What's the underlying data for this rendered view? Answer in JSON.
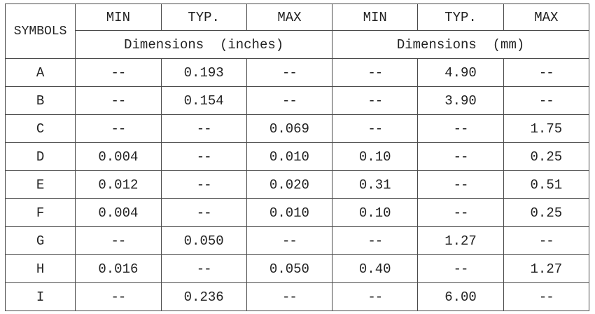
{
  "header": {
    "symbols": "SYMBOLS",
    "col_labels": [
      "MIN",
      "TYP.",
      "MAX",
      "MIN",
      "TYP.",
      "MAX"
    ],
    "group_inches": "Dimensions  (inches)",
    "group_mm": "Dimensions  (mm)"
  },
  "rows": [
    {
      "symbol": "A",
      "cells": [
        "--",
        "0.193",
        "--",
        "--",
        "4.90",
        "--"
      ]
    },
    {
      "symbol": "B",
      "cells": [
        "--",
        "0.154",
        "--",
        "--",
        "3.90",
        "--"
      ]
    },
    {
      "symbol": "C",
      "cells": [
        "--",
        "--",
        "0.069",
        "--",
        "--",
        "1.75"
      ]
    },
    {
      "symbol": "D",
      "cells": [
        "0.004",
        "--",
        "0.010",
        "0.10",
        "--",
        "0.25"
      ]
    },
    {
      "symbol": "E",
      "cells": [
        "0.012",
        "--",
        "0.020",
        "0.31",
        "--",
        "0.51"
      ]
    },
    {
      "symbol": "F",
      "cells": [
        "0.004",
        "--",
        "0.010",
        "0.10",
        "--",
        "0.25"
      ]
    },
    {
      "symbol": "G",
      "cells": [
        "--",
        "0.050",
        "--",
        "--",
        "1.27",
        "--"
      ]
    },
    {
      "symbol": "H",
      "cells": [
        "0.016",
        "--",
        "0.050",
        "0.40",
        "--",
        "1.27"
      ]
    },
    {
      "symbol": "I",
      "cells": [
        "--",
        "0.236",
        "--",
        "--",
        "6.00",
        "--"
      ]
    }
  ]
}
